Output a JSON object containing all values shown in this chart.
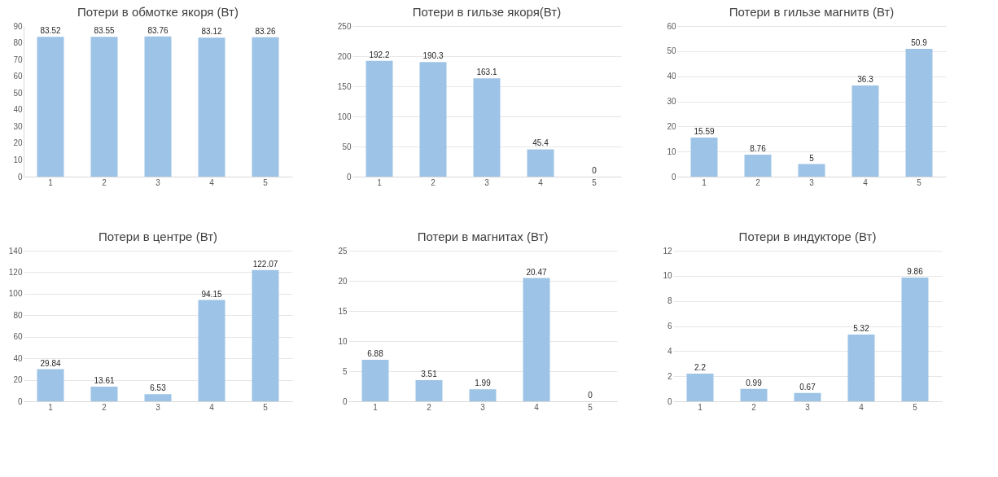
{
  "chart_data": [
    {
      "type": "bar",
      "title": "Потери в обмотке якоря (Вт)",
      "categories": [
        "1",
        "2",
        "3",
        "4",
        "5"
      ],
      "values": [
        83.52,
        83.55,
        83.76,
        83.12,
        83.26
      ],
      "color": "#9dc3e6",
      "ylim": [
        0,
        90
      ],
      "yticks": [
        0,
        10,
        20,
        30,
        40,
        50,
        60,
        70,
        80,
        90
      ],
      "grid": false,
      "data_labels": true
    },
    {
      "type": "bar",
      "title": "Потери в гильзе якоря(Вт)",
      "categories": [
        "1",
        "2",
        "3",
        "4",
        "5"
      ],
      "values": [
        192.2,
        190.3,
        163.1,
        45.4,
        0
      ],
      "color": "#9dc3e6",
      "ylim": [
        0,
        250
      ],
      "yticks": [
        0,
        50,
        100,
        150,
        200,
        250
      ],
      "grid": "y",
      "data_labels": true
    },
    {
      "type": "bar",
      "title": "Потери в гильзе магнитв (Вт)",
      "categories": [
        "1",
        "2",
        "3",
        "4",
        "5"
      ],
      "values": [
        15.59,
        8.76,
        5,
        36.3,
        50.9
      ],
      "color": "#9dc3e6",
      "ylim": [
        0,
        60
      ],
      "yticks": [
        0,
        10,
        20,
        30,
        40,
        50,
        60
      ],
      "grid": "y",
      "data_labels": true
    },
    {
      "type": "bar",
      "title": "Потери в центре (Вт)",
      "categories": [
        "1",
        "2",
        "3",
        "4",
        "5"
      ],
      "values": [
        29.84,
        13.61,
        6.53,
        94.15,
        122.07
      ],
      "color": "#9dc3e6",
      "ylim": [
        0,
        140
      ],
      "yticks": [
        0,
        20,
        40,
        60,
        80,
        100,
        120,
        140
      ],
      "grid": "y",
      "data_labels": true
    },
    {
      "type": "bar",
      "title": "Потери в магнитах (Вт)",
      "categories": [
        "1",
        "2",
        "3",
        "4",
        "5"
      ],
      "values": [
        6.88,
        3.51,
        1.99,
        20.47,
        0
      ],
      "color": "#9dc3e6",
      "ylim": [
        0,
        25
      ],
      "yticks": [
        0,
        5,
        10,
        15,
        20,
        25
      ],
      "grid": "y",
      "data_labels": true
    },
    {
      "type": "bar",
      "title": "Потери в индукторе (Вт)",
      "categories": [
        "1",
        "2",
        "3",
        "4",
        "5"
      ],
      "values": [
        2.2,
        0.99,
        0.67,
        5.32,
        9.86
      ],
      "color": "#9dc3e6",
      "ylim": [
        0,
        12
      ],
      "yticks": [
        0,
        2,
        4,
        6,
        8,
        10,
        12
      ],
      "grid": "y",
      "data_labels": true
    }
  ]
}
